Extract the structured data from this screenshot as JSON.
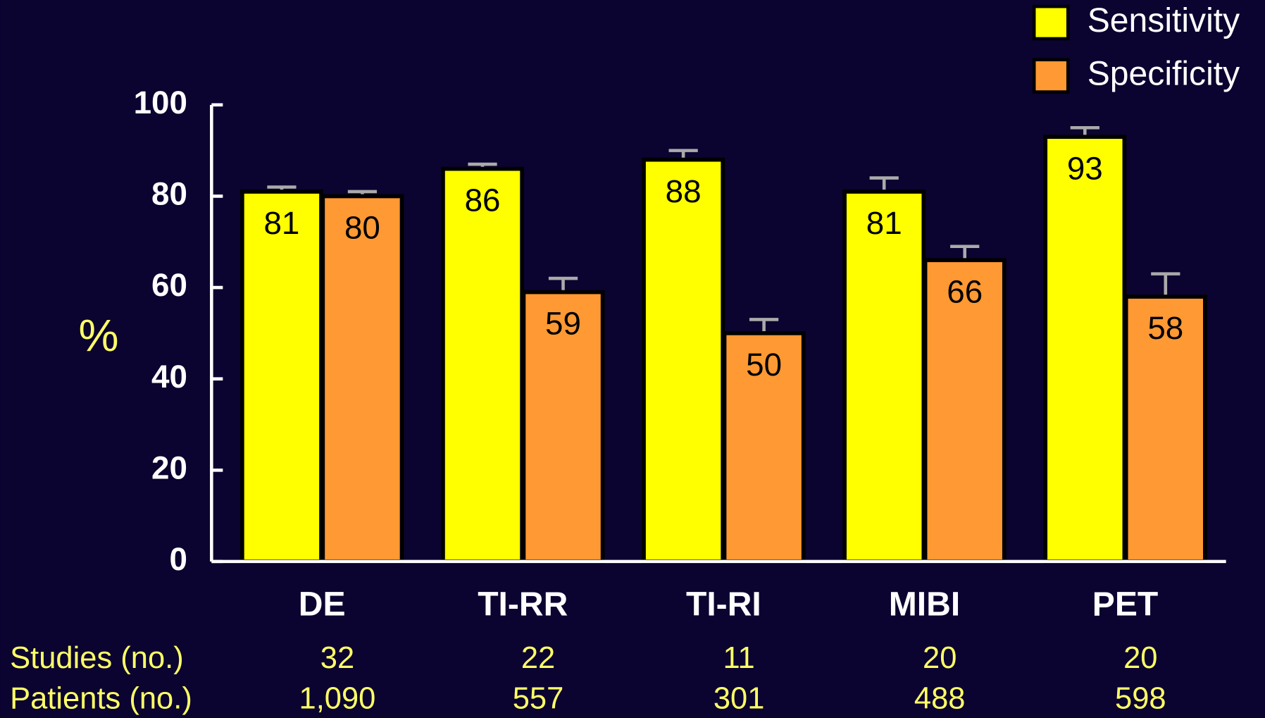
{
  "chart_data": {
    "type": "bar",
    "categories": [
      "DE",
      "TI-RR",
      "TI-RI",
      "MIBI",
      "PET"
    ],
    "series": [
      {
        "name": "Sensitivity",
        "color": "#ffff00",
        "values": [
          81,
          86,
          88,
          81,
          93
        ],
        "errors": [
          1,
          1,
          2,
          3,
          2
        ]
      },
      {
        "name": "Specificity",
        "color": "#ff9933",
        "values": [
          80,
          59,
          50,
          66,
          58
        ],
        "errors": [
          1,
          3,
          3,
          3,
          5
        ]
      }
    ],
    "ylabel": "%",
    "ylim": [
      0,
      100
    ],
    "yticks": [
      0,
      20,
      40,
      60,
      80,
      100
    ],
    "legend": "top-right",
    "table": [
      {
        "label": "Studies (no.)",
        "values": [
          32,
          22,
          11,
          20,
          20
        ]
      },
      {
        "label": "Patients (no.)",
        "values": [
          1090,
          557,
          301,
          488,
          598
        ],
        "value_labels": [
          "1,090",
          "557",
          "301",
          "488",
          "598"
        ]
      }
    ]
  }
}
